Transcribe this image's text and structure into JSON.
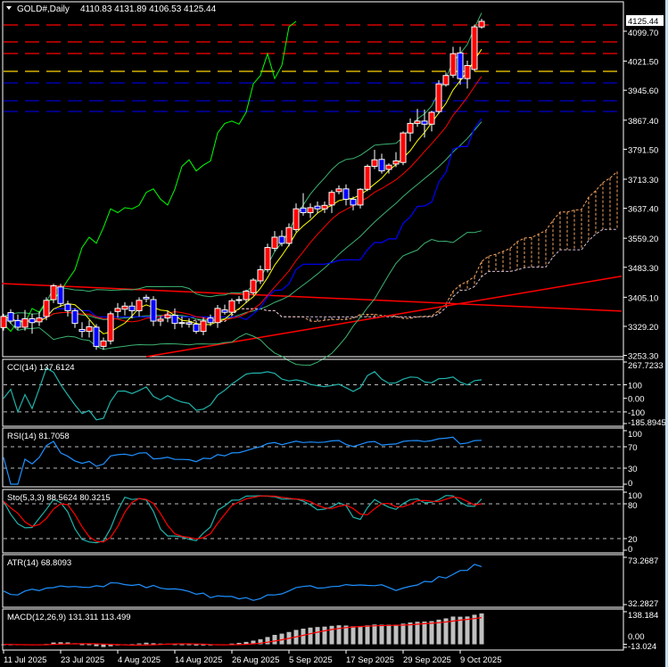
{
  "header": {
    "symbol": "GOLD#,Daily",
    "ohlc": "4110.83 4131.89 4106.53 4125.44"
  },
  "current_price": "4125.44",
  "price_axis": [
    "4099.70",
    "4021.50",
    "3945.60",
    "3867.40",
    "3791.50",
    "3713.30",
    "3637.40",
    "3559.20",
    "3483.30",
    "3405.10",
    "3329.20",
    "3253.30"
  ],
  "price_axis_values": [
    4099.7,
    4021.5,
    3945.6,
    3867.4,
    3791.5,
    3713.3,
    3637.4,
    3559.2,
    3483.3,
    3405.1,
    3329.2,
    3253.3
  ],
  "dates": [
    {
      "label": "11 Jul 2025",
      "bar": 0
    },
    {
      "label": "23 Jul 2025",
      "bar": 8
    },
    {
      "label": "4 Aug 2025",
      "bar": 16
    },
    {
      "label": "14 Aug 2025",
      "bar": 24
    },
    {
      "label": "26 Aug 2025",
      "bar": 32
    },
    {
      "label": "5 Sep 2025",
      "bar": 40
    },
    {
      "label": "17 Sep 2025",
      "bar": 48
    },
    {
      "label": "29 Sep 2025",
      "bar": 56
    },
    {
      "label": "9 Oct 2025",
      "bar": 64
    }
  ],
  "colors": {
    "bull": "#ff0000",
    "bear": "#0000ff",
    "sma_fast": "#ffff00",
    "sma_slow": "#ff0000",
    "bands": "#3cb371",
    "kijun": "#0000ff",
    "chikou": "#00ff00",
    "cloud_up": "#f4a460",
    "cloud_down": "#d8bfd8",
    "trendline": "#ff0000",
    "cci": "#20b2aa",
    "rsi": "#1e90ff",
    "sto_main": "#20b2aa",
    "sto_signal": "#ff0000",
    "atr": "#1e90ff",
    "macd_hist": "#c0c0c0",
    "macd_signal": "#ff0000"
  },
  "levels": [
    {
      "price": 4116.0,
      "color": "#ff0000"
    },
    {
      "price": 4071.8,
      "color": "#ff0000"
    },
    {
      "price": 4041.5,
      "color": "#ff0000"
    },
    {
      "price": 3994.9,
      "color": "#ffd700"
    },
    {
      "price": 3964.7,
      "color": "#0000cd"
    },
    {
      "price": 3918.1,
      "color": "#0000cd"
    },
    {
      "price": 3890.2,
      "color": "#0000cd"
    }
  ],
  "trendlines": [
    {
      "bar1": -0.2,
      "price1": 3441,
      "bar2": 86.6,
      "price2": 3369
    },
    {
      "bar1": 20,
      "price1": 3250,
      "bar2": 86.6,
      "price2": 3460
    }
  ],
  "candles": [
    {
      "o": 3326,
      "h": 3362,
      "l": 3318,
      "c": 3355
    },
    {
      "o": 3365,
      "h": 3374,
      "l": 3336,
      "c": 3343
    },
    {
      "o": 3344,
      "h": 3360,
      "l": 3320,
      "c": 3327
    },
    {
      "o": 3327,
      "h": 3372,
      "l": 3318,
      "c": 3349
    },
    {
      "o": 3349,
      "h": 3362,
      "l": 3310,
      "c": 3339
    },
    {
      "o": 3341,
      "h": 3368,
      "l": 3330,
      "c": 3351
    },
    {
      "o": 3355,
      "h": 3405,
      "l": 3345,
      "c": 3397
    },
    {
      "o": 3399,
      "h": 3440,
      "l": 3390,
      "c": 3435
    },
    {
      "o": 3432,
      "h": 3440,
      "l": 3380,
      "c": 3389
    },
    {
      "o": 3387,
      "h": 3396,
      "l": 3355,
      "c": 3370
    },
    {
      "o": 3370,
      "h": 3376,
      "l": 3325,
      "c": 3337
    },
    {
      "o": 3321,
      "h": 3340,
      "l": 3300,
      "c": 3316
    },
    {
      "o": 3316,
      "h": 3345,
      "l": 3300,
      "c": 3328
    },
    {
      "o": 3327,
      "h": 3335,
      "l": 3268,
      "c": 3277
    },
    {
      "o": 3277,
      "h": 3300,
      "l": 3268,
      "c": 3291
    },
    {
      "o": 3291,
      "h": 3368,
      "l": 3282,
      "c": 3362
    },
    {
      "o": 3368,
      "h": 3390,
      "l": 3352,
      "c": 3376
    },
    {
      "o": 3374,
      "h": 3392,
      "l": 3358,
      "c": 3382
    },
    {
      "o": 3382,
      "h": 3393,
      "l": 3350,
      "c": 3370
    },
    {
      "o": 3370,
      "h": 3405,
      "l": 3355,
      "c": 3397
    },
    {
      "o": 3405,
      "h": 3412,
      "l": 3392,
      "c": 3401
    },
    {
      "o": 3399,
      "h": 3408,
      "l": 3330,
      "c": 3343
    },
    {
      "o": 3343,
      "h": 3356,
      "l": 3330,
      "c": 3348
    },
    {
      "o": 3351,
      "h": 3370,
      "l": 3340,
      "c": 3359
    },
    {
      "o": 3358,
      "h": 3376,
      "l": 3322,
      "c": 3337
    },
    {
      "o": 3339,
      "h": 3355,
      "l": 3326,
      "c": 3337
    },
    {
      "o": 3339,
      "h": 3350,
      "l": 3326,
      "c": 3335
    },
    {
      "o": 3335,
      "h": 3344,
      "l": 3310,
      "c": 3316
    },
    {
      "o": 3316,
      "h": 3352,
      "l": 3306,
      "c": 3343
    },
    {
      "o": 3351,
      "h": 3360,
      "l": 3330,
      "c": 3339
    },
    {
      "o": 3339,
      "h": 3385,
      "l": 3325,
      "c": 3376
    },
    {
      "o": 3372,
      "h": 3386,
      "l": 3360,
      "c": 3366
    },
    {
      "o": 3366,
      "h": 3402,
      "l": 3358,
      "c": 3396
    },
    {
      "o": 3397,
      "h": 3408,
      "l": 3388,
      "c": 3399
    },
    {
      "o": 3399,
      "h": 3425,
      "l": 3390,
      "c": 3421
    },
    {
      "o": 3417,
      "h": 3455,
      "l": 3410,
      "c": 3450
    },
    {
      "o": 3448,
      "h": 3488,
      "l": 3440,
      "c": 3477
    },
    {
      "o": 3477,
      "h": 3545,
      "l": 3470,
      "c": 3535
    },
    {
      "o": 3533,
      "h": 3578,
      "l": 3525,
      "c": 3562
    },
    {
      "o": 3564,
      "h": 3580,
      "l": 3538,
      "c": 3546
    },
    {
      "o": 3546,
      "h": 3598,
      "l": 3538,
      "c": 3587
    },
    {
      "o": 3582,
      "h": 3650,
      "l": 3575,
      "c": 3636
    },
    {
      "o": 3638,
      "h": 3677,
      "l": 3618,
      "c": 3626
    },
    {
      "o": 3626,
      "h": 3650,
      "l": 3612,
      "c": 3639
    },
    {
      "o": 3643,
      "h": 3655,
      "l": 3624,
      "c": 3636
    },
    {
      "o": 3636,
      "h": 3655,
      "l": 3625,
      "c": 3645
    },
    {
      "o": 3646,
      "h": 3685,
      "l": 3625,
      "c": 3679
    },
    {
      "o": 3681,
      "h": 3697,
      "l": 3674,
      "c": 3688
    },
    {
      "o": 3688,
      "h": 3700,
      "l": 3645,
      "c": 3661
    },
    {
      "o": 3661,
      "h": 3668,
      "l": 3632,
      "c": 3646
    },
    {
      "o": 3646,
      "h": 3690,
      "l": 3637,
      "c": 3687
    },
    {
      "o": 3687,
      "h": 3752,
      "l": 3682,
      "c": 3747
    },
    {
      "o": 3747,
      "h": 3790,
      "l": 3740,
      "c": 3764
    },
    {
      "o": 3765,
      "h": 3780,
      "l": 3728,
      "c": 3735
    },
    {
      "o": 3739,
      "h": 3755,
      "l": 3728,
      "c": 3750
    },
    {
      "o": 3753,
      "h": 3784,
      "l": 3745,
      "c": 3761
    },
    {
      "o": 3757,
      "h": 3838,
      "l": 3750,
      "c": 3834
    },
    {
      "o": 3834,
      "h": 3872,
      "l": 3812,
      "c": 3859
    },
    {
      "o": 3859,
      "h": 3897,
      "l": 3850,
      "c": 3865
    },
    {
      "o": 3865,
      "h": 3895,
      "l": 3822,
      "c": 3857
    },
    {
      "o": 3857,
      "h": 3892,
      "l": 3838,
      "c": 3888
    },
    {
      "o": 3890,
      "h": 3972,
      "l": 3884,
      "c": 3962
    },
    {
      "o": 3960,
      "h": 3992,
      "l": 3955,
      "c": 3984
    },
    {
      "o": 3985,
      "h": 4059,
      "l": 3978,
      "c": 4041
    },
    {
      "o": 4043,
      "h": 4059,
      "l": 3960,
      "c": 3976
    },
    {
      "o": 3976,
      "h": 4023,
      "l": 3950,
      "c": 4010
    },
    {
      "o": 4000,
      "h": 4117,
      "l": 3995,
      "c": 4111
    },
    {
      "o": 4110.83,
      "h": 4131.89,
      "l": 4106.53,
      "c": 4125.44
    }
  ],
  "indicators": {
    "cci": {
      "label": "CCI(14) 137.6124",
      "max": 267.7233,
      "min": -185.8945,
      "axis": [
        "267.7233",
        "100",
        "0.00",
        "-100",
        "-185.8945"
      ],
      "levels": [
        100,
        -100
      ]
    },
    "rsi": {
      "label": "RSI(14) 81.7058",
      "max": 100,
      "min": 0,
      "axis": [
        "100",
        "70",
        "30",
        "0"
      ],
      "levels": [
        70,
        30
      ]
    },
    "sto": {
      "label": "Sto(5,3,3) 88.5624 80.3215",
      "max": 100,
      "min": 0,
      "axis": [
        "100",
        "80",
        "20",
        "0"
      ],
      "levels": [
        80,
        20
      ]
    },
    "atr": {
      "label": "ATR(14) 68.8093",
      "max": 73.2687,
      "min": 32.2827,
      "axis": [
        "73.2687",
        "32.2827"
      ]
    },
    "macd": {
      "label": "MACD(12,26,9) 131.311 113.499",
      "max": 138.184,
      "min": -13.024,
      "axis": [
        "138.184",
        "0.00",
        "-13.024"
      ]
    }
  }
}
